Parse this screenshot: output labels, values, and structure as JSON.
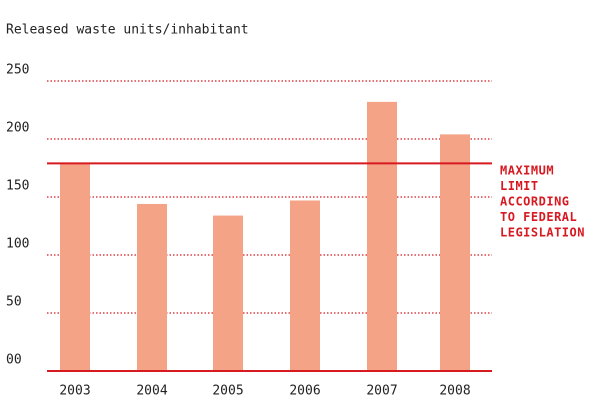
{
  "chart_data": {
    "type": "bar",
    "title": "Released waste units/inhabitant",
    "categories": [
      "2003",
      "2004",
      "2005",
      "2006",
      "2007",
      "2008"
    ],
    "values": [
      179,
      144,
      134,
      147,
      232,
      204
    ],
    "color": "#f4a386",
    "ylim": [
      0,
      250
    ],
    "yticks": [
      {
        "value": 0,
        "label": "00"
      },
      50,
      100,
      150,
      200,
      250
    ],
    "grid": true,
    "limit": 179,
    "limit_color": "#d71920",
    "annotation": [
      "MAXIMUM",
      "LIMIT",
      "ACCORDING",
      "TO FEDERAL",
      "LEGISLATION"
    ]
  }
}
